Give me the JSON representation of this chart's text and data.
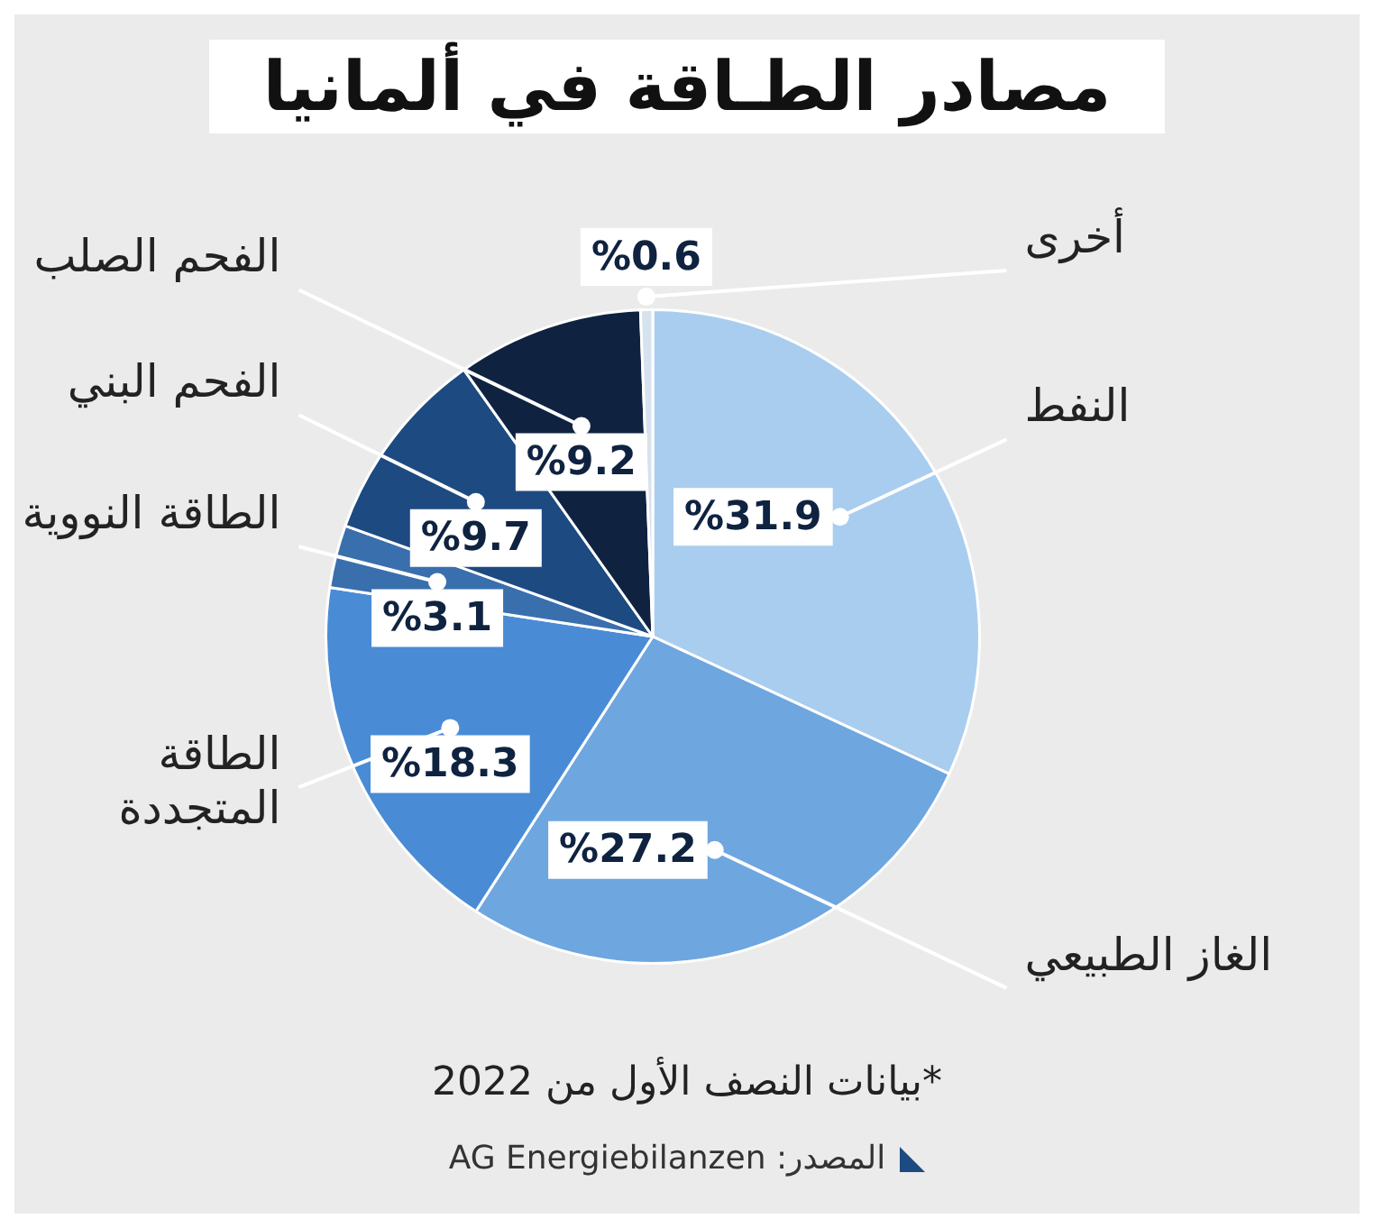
{
  "chart_data": {
    "type": "pie",
    "title": "مصادر الطـاقة في ألمانيا",
    "categories": [
      "النفط",
      "الغاز الطبيعي",
      "الطاقة المتجددة",
      "الطاقة النووية",
      "الفحم البني",
      "الفحم الصلب",
      "أخرى"
    ],
    "values": [
      31.9,
      27.2,
      18.3,
      3.1,
      9.7,
      9.2,
      0.6
    ],
    "value_labels": [
      "%31.9",
      "%27.2",
      "%18.3",
      "%3.1",
      "%9.7",
      "%9.2",
      "%0.6"
    ],
    "colors": [
      "#a9cdef",
      "#6ea6e0",
      "#4a8bd6",
      "#3a6fae",
      "#1d4a80",
      "#0f2341",
      "#d6e2ee"
    ],
    "legend": false,
    "annotations": [
      "*بيانات النصف الأول من 2022",
      "المصدر: AG Energiebilanzen"
    ]
  }
}
